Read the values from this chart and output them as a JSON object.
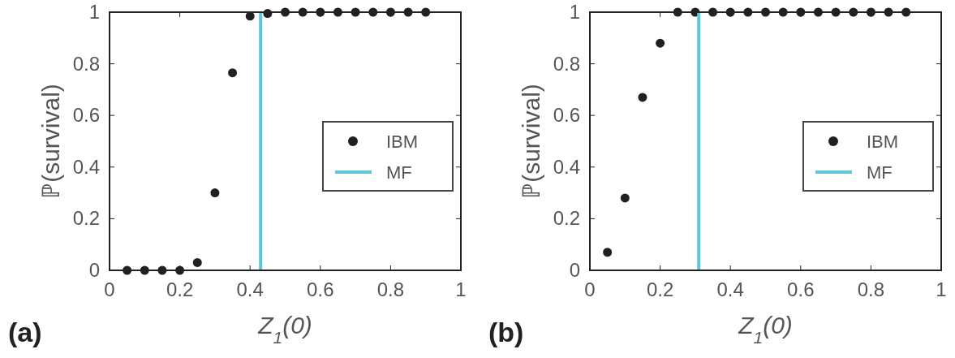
{
  "chart_data": [
    {
      "type": "scatter",
      "xlabel": "Z$_{1}$(0)",
      "ylabel": "ℙ(survival)",
      "annotations": [
        "(a)"
      ],
      "xlim": [
        0,
        1
      ],
      "ylim": [
        0,
        1
      ],
      "xticks": [
        0,
        0.2,
        0.4,
        0.6,
        0.8,
        1
      ],
      "yticks": [
        0,
        0.2,
        0.4,
        0.6,
        0.8,
        1
      ],
      "legend": "right",
      "grid": false,
      "series": [
        {
          "name": "IBM",
          "marker": "circle",
          "color": "#231f20",
          "x": [
            0.05,
            0.1,
            0.15,
            0.2,
            0.25,
            0.3,
            0.35,
            0.4,
            0.45,
            0.5,
            0.55,
            0.6,
            0.65,
            0.7,
            0.75,
            0.8,
            0.85,
            0.9
          ],
          "values": [
            0,
            0,
            0,
            0,
            0.03,
            0.3,
            0.765,
            0.985,
            0.995,
            1,
            1,
            1,
            1,
            1,
            1,
            1,
            1,
            1
          ]
        },
        {
          "name": "MF",
          "type": "line",
          "color": "#5bc8d8",
          "x": [
            0.43,
            0.43
          ],
          "values": [
            0,
            1
          ]
        }
      ]
    },
    {
      "type": "scatter",
      "xlabel": "Z$_{1}$(0)",
      "ylabel": "ℙ(survival)",
      "annotations": [
        "(b)"
      ],
      "xlim": [
        0,
        1
      ],
      "ylim": [
        0,
        1
      ],
      "xticks": [
        0,
        0.2,
        0.4,
        0.6,
        0.8,
        1
      ],
      "yticks": [
        0,
        0.2,
        0.4,
        0.6,
        0.8,
        1
      ],
      "legend": "right",
      "grid": false,
      "series": [
        {
          "name": "IBM",
          "marker": "circle",
          "color": "#231f20",
          "x": [
            0.05,
            0.1,
            0.15,
            0.2,
            0.25,
            0.3,
            0.35,
            0.4,
            0.45,
            0.5,
            0.55,
            0.6,
            0.65,
            0.7,
            0.75,
            0.8,
            0.85,
            0.9
          ],
          "values": [
            0.07,
            0.28,
            0.67,
            0.88,
            1,
            1,
            1,
            1,
            1,
            1,
            1,
            1,
            1,
            1,
            1,
            1,
            1,
            1
          ]
        },
        {
          "name": "MF",
          "type": "line",
          "color": "#5bc8d8",
          "x": [
            0.31,
            0.31
          ],
          "values": [
            0,
            1
          ]
        }
      ]
    }
  ]
}
